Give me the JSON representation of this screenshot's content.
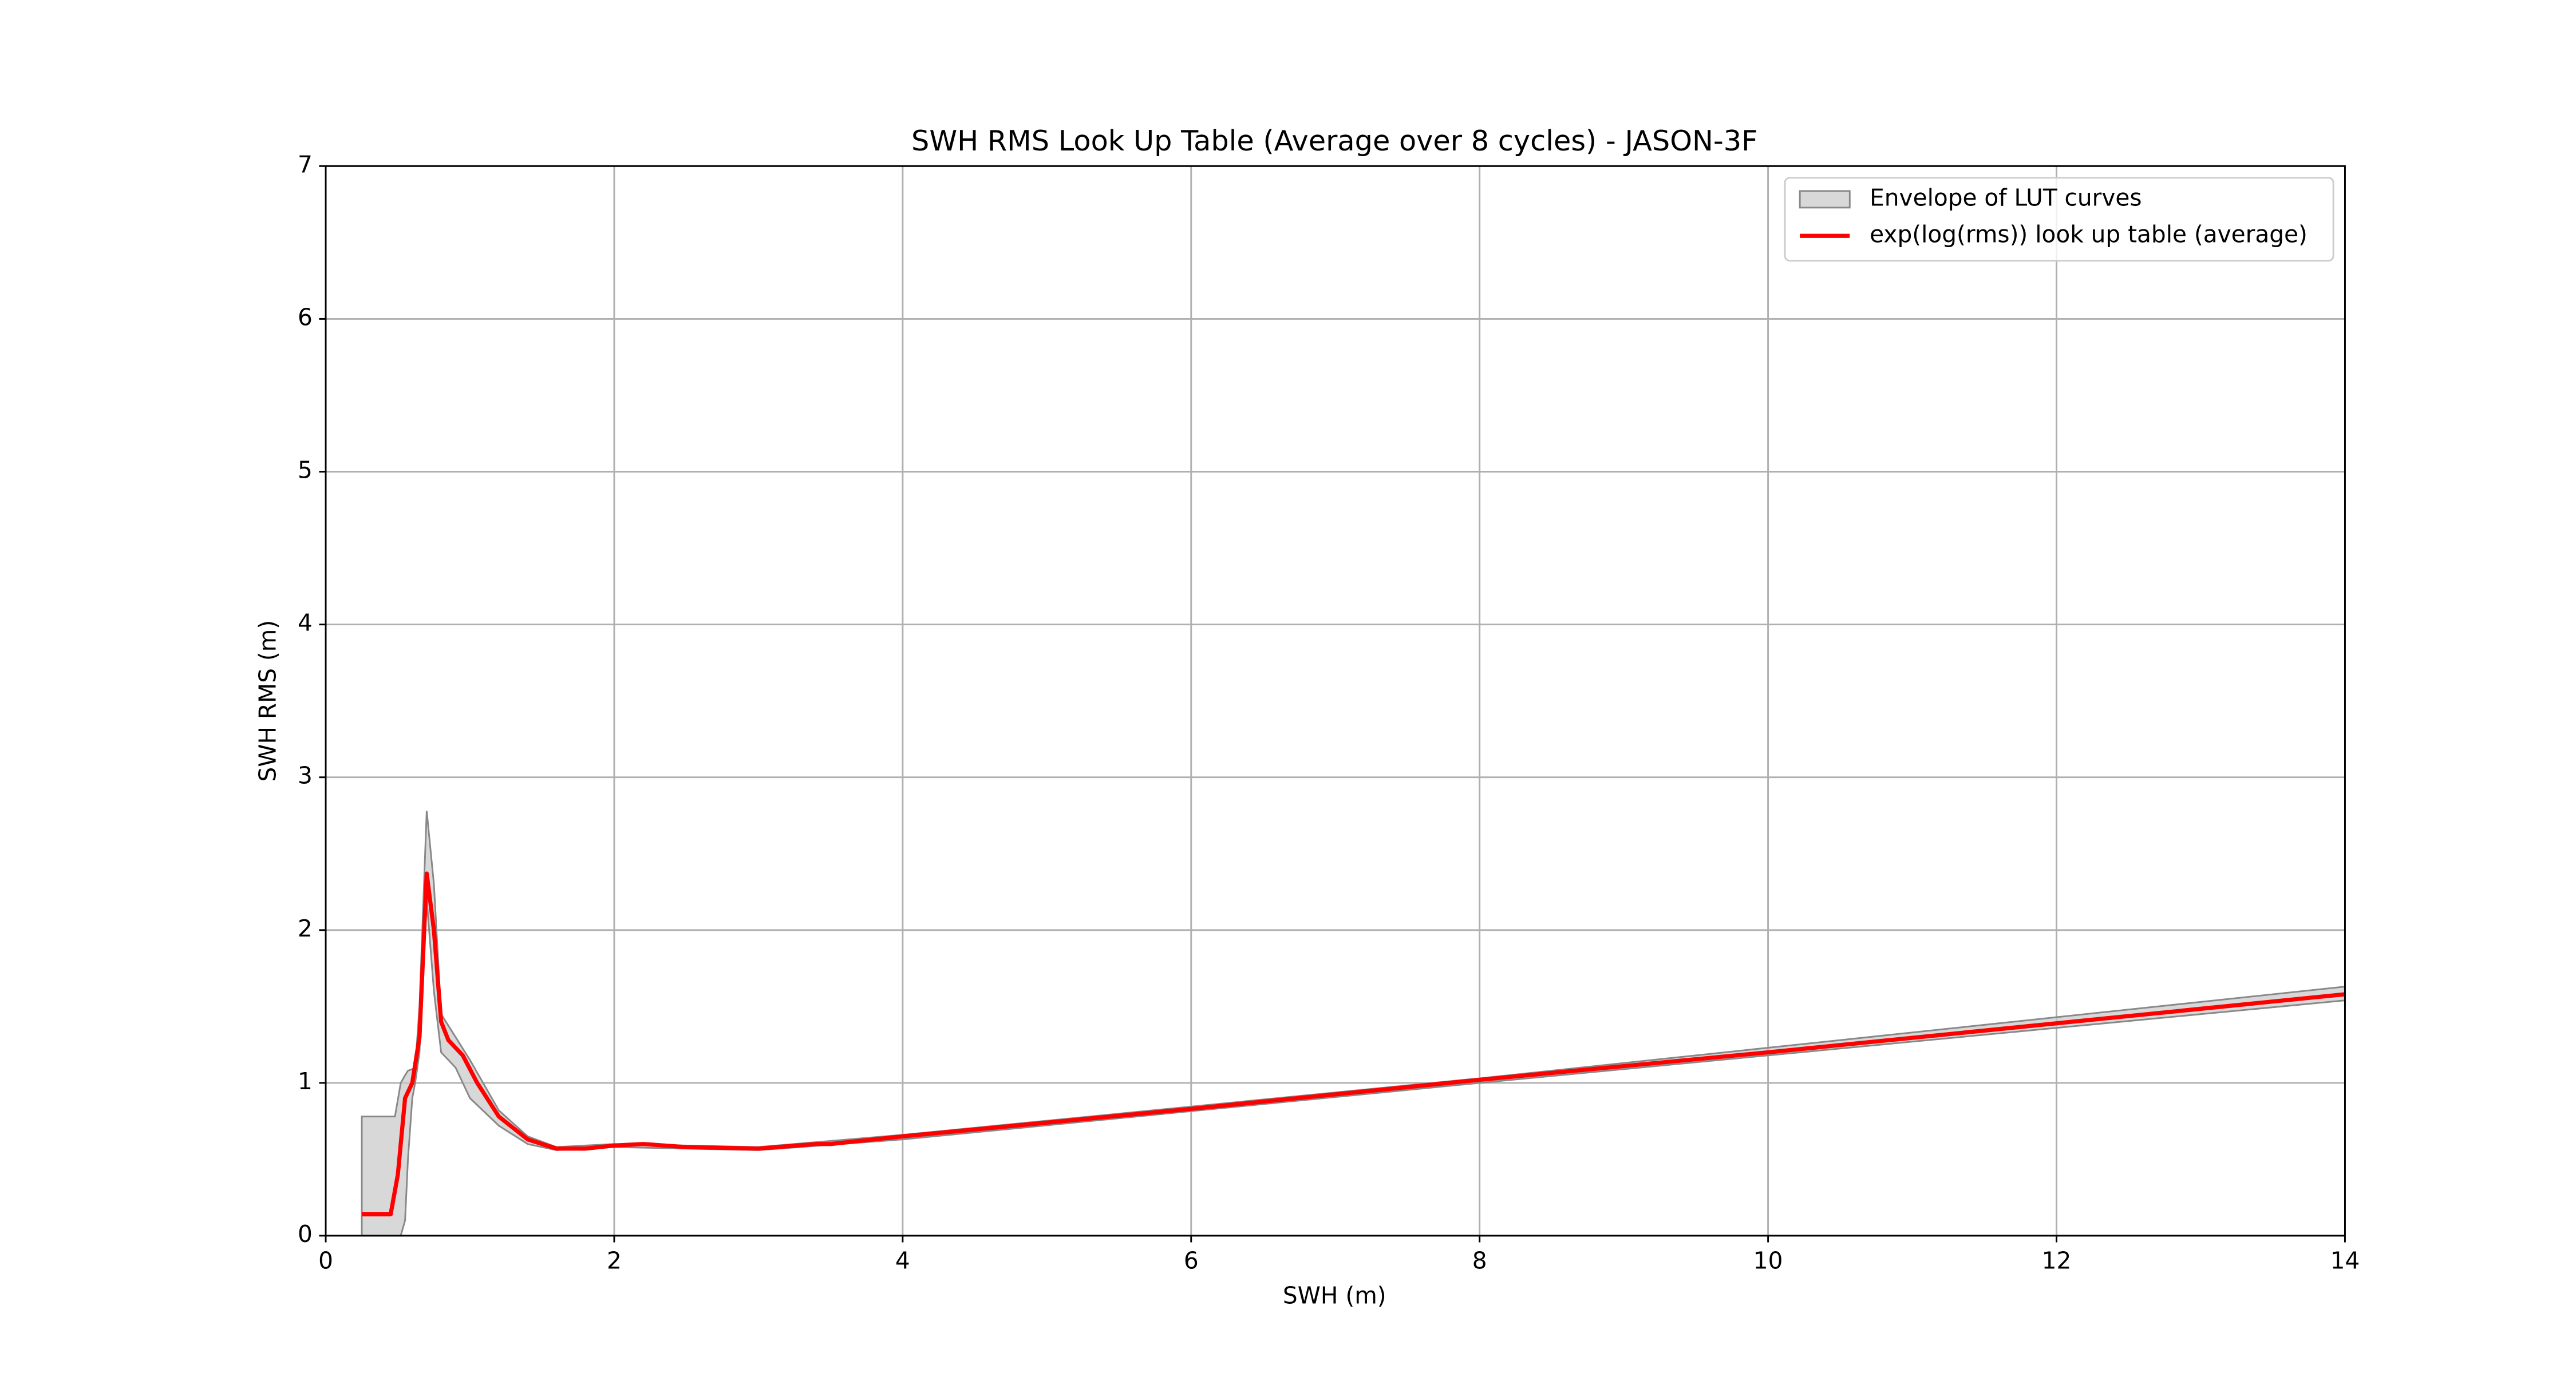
{
  "chart_data": {
    "type": "line",
    "title": "SWH RMS Look Up Table (Average over 8 cycles) - JASON-3F",
    "xlabel": "SWH (m)",
    "ylabel": "SWH RMS (m)",
    "xlim": [
      0,
      14
    ],
    "ylim": [
      0,
      7
    ],
    "xticks": [
      0,
      2,
      4,
      6,
      8,
      10,
      12,
      14
    ],
    "yticks": [
      0,
      1,
      2,
      3,
      4,
      5,
      6,
      7
    ],
    "grid": true,
    "legend": "upper right",
    "series": [
      {
        "name": "Envelope of LUT curves",
        "color": "#c8c8c8",
        "x": [
          0.25,
          0.48,
          0.52,
          0.55,
          0.57,
          0.6,
          0.62,
          0.65,
          0.7,
          0.75,
          0.8,
          0.9,
          1.0,
          1.2,
          1.4,
          1.6,
          2,
          3,
          4,
          8,
          14
        ],
        "upper": [
          0.78,
          0.78,
          1.0,
          1.05,
          1.08,
          1.09,
          1.1,
          1.5,
          2.78,
          2.3,
          1.45,
          1.3,
          1.15,
          0.82,
          0.65,
          0.58,
          0.6,
          0.58,
          0.66,
          1.03,
          1.63
        ],
        "lower": [
          0,
          0,
          0,
          0.1,
          0.5,
          0.9,
          1.0,
          1.2,
          2.2,
          1.6,
          1.2,
          1.1,
          0.9,
          0.72,
          0.6,
          0.56,
          0.58,
          0.56,
          0.63,
          1.0,
          1.54
        ]
      },
      {
        "name": "exp(log(rms)) look up table (average)",
        "color": "#ff0000",
        "x": [
          0.25,
          0.45,
          0.5,
          0.55,
          0.6,
          0.65,
          0.7,
          0.75,
          0.8,
          0.85,
          0.95,
          1.05,
          1.2,
          1.4,
          1.6,
          1.8,
          2.0,
          2.2,
          2.5,
          3.0,
          3.4,
          3.5,
          4,
          6,
          8,
          10,
          12,
          14
        ],
        "values": [
          0.14,
          0.14,
          0.4,
          0.9,
          1.0,
          1.3,
          2.37,
          2.0,
          1.4,
          1.28,
          1.18,
          1.0,
          0.78,
          0.63,
          0.57,
          0.57,
          0.59,
          0.6,
          0.58,
          0.57,
          0.6,
          0.6,
          0.65,
          0.83,
          1.02,
          1.2,
          1.39,
          1.58
        ]
      }
    ]
  }
}
